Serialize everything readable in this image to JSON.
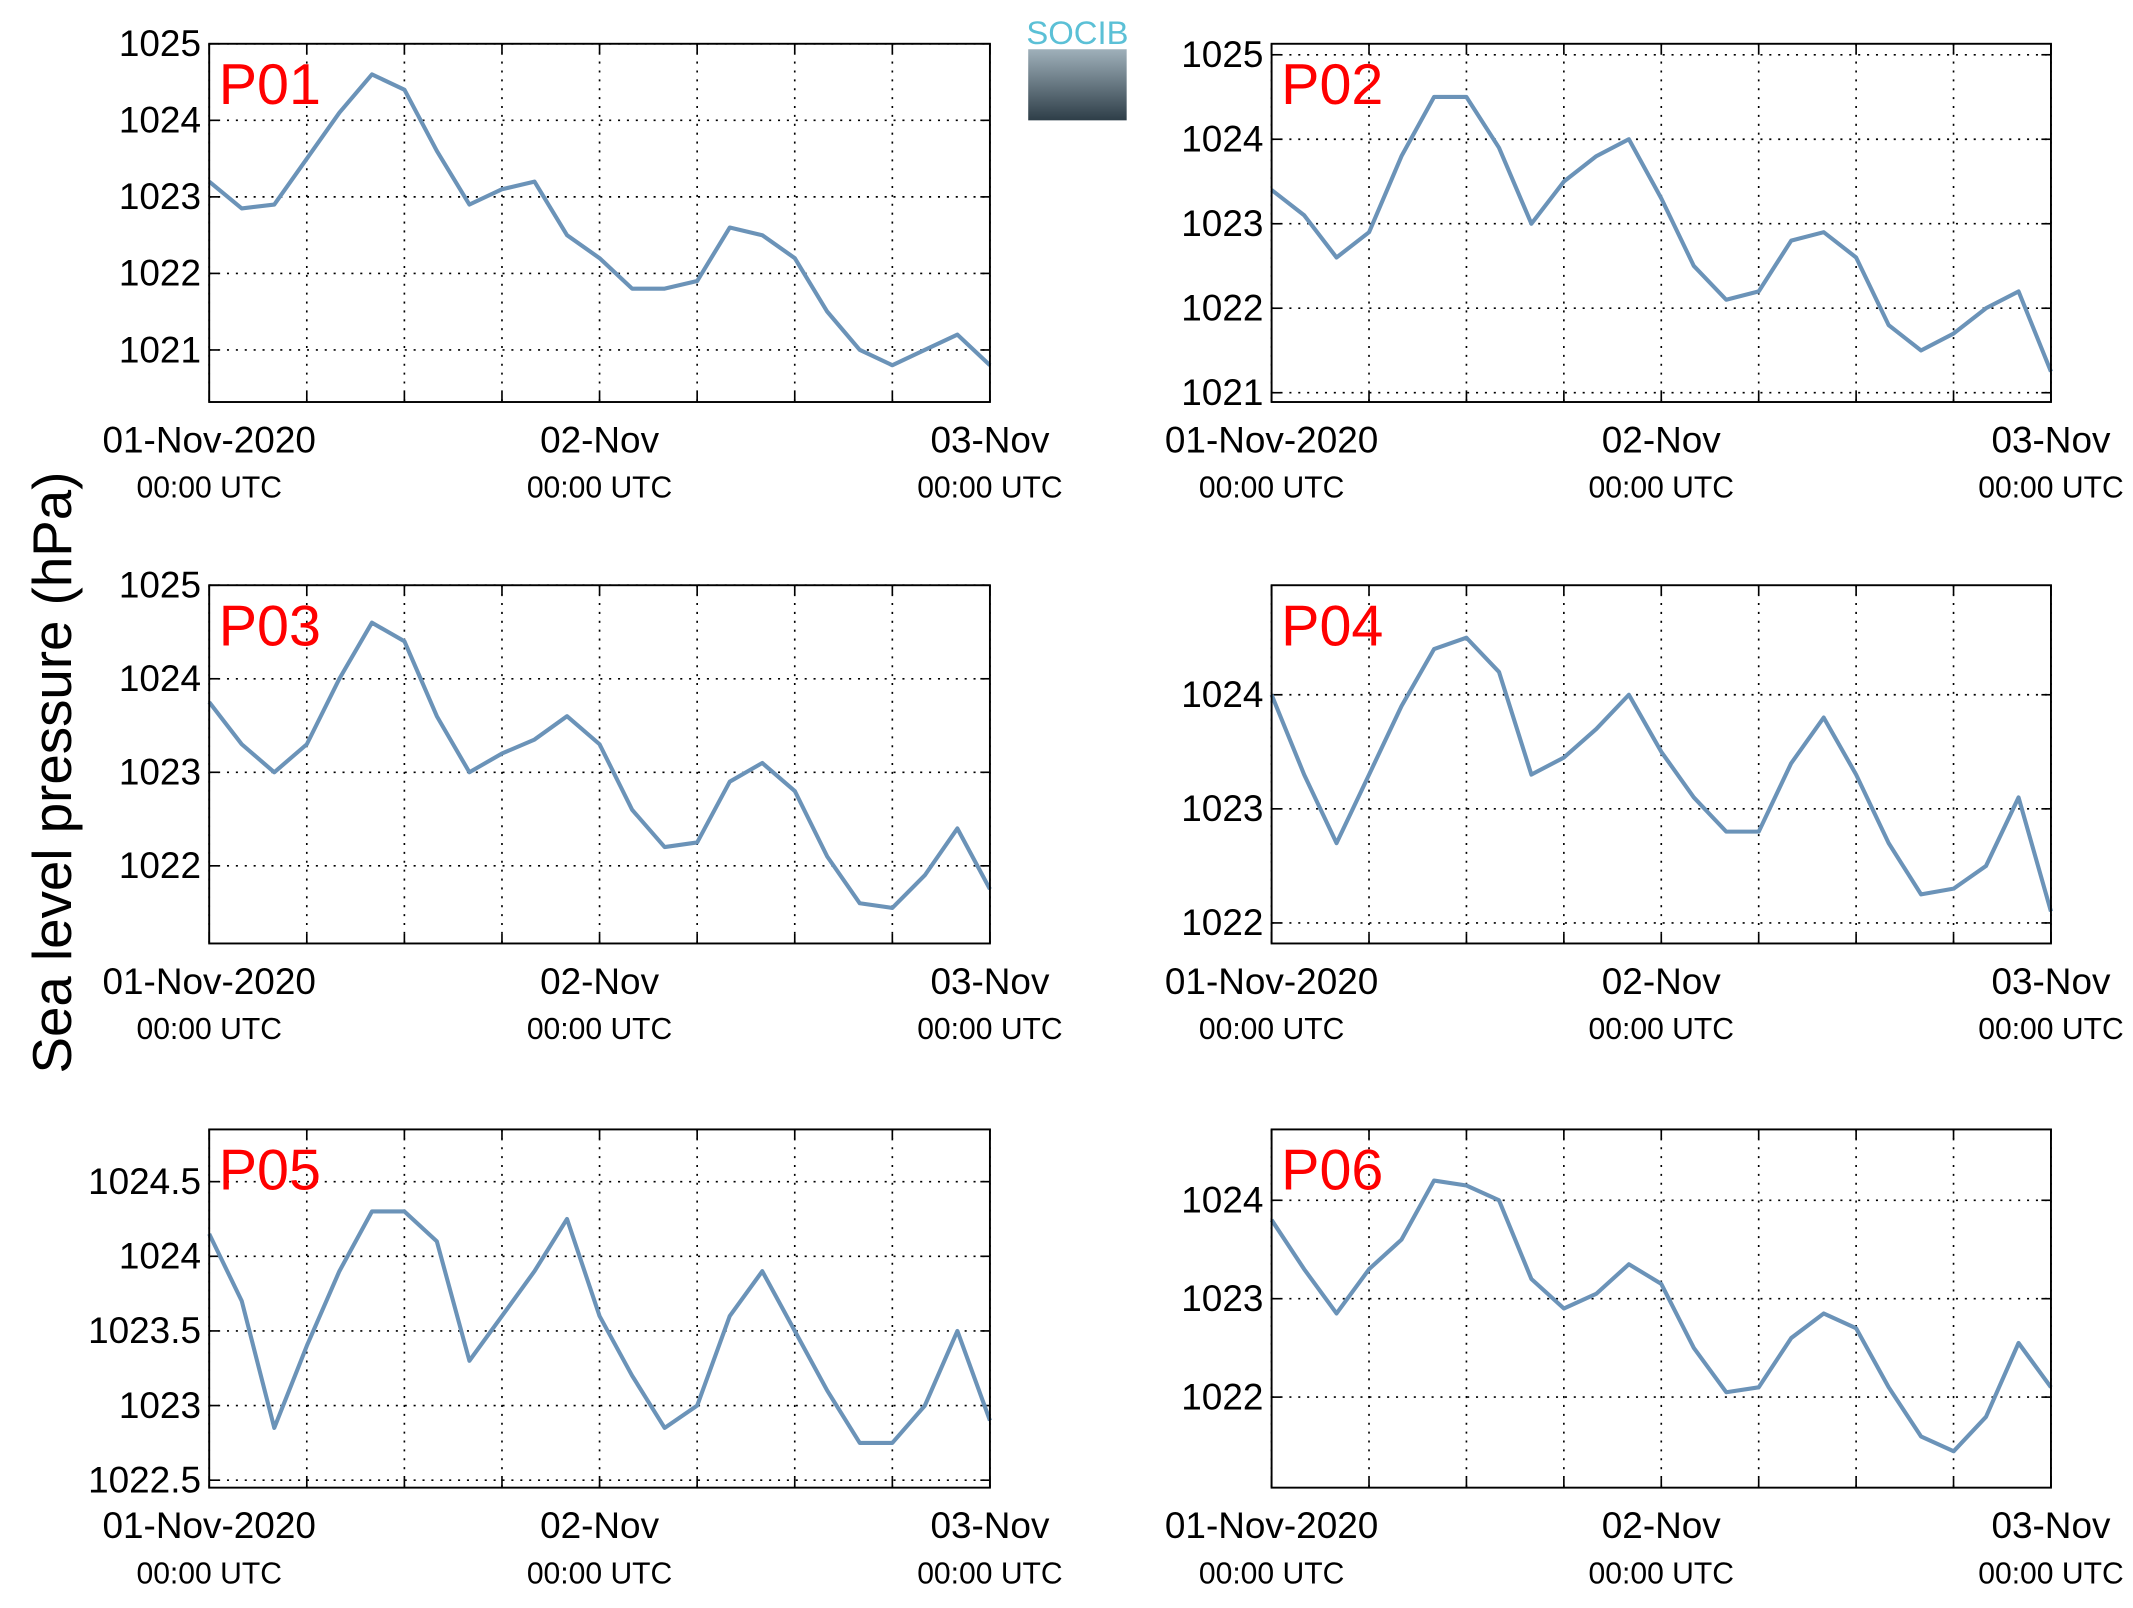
{
  "ylabel": "Sea level pressure (hPa)",
  "logo": "SOCIB",
  "chart_data": [
    {
      "type": "line",
      "title": "P01",
      "color": "#6b93b8",
      "grid": true,
      "x": [
        "2020-11-01T00:00",
        "2020-11-01T02:00",
        "2020-11-01T04:00",
        "2020-11-01T06:00",
        "2020-11-01T08:00",
        "2020-11-01T10:00",
        "2020-11-01T12:00",
        "2020-11-01T14:00",
        "2020-11-01T16:00",
        "2020-11-01T18:00",
        "2020-11-01T20:00",
        "2020-11-01T22:00",
        "2020-11-02T00:00",
        "2020-11-02T02:00",
        "2020-11-02T04:00",
        "2020-11-02T06:00",
        "2020-11-02T08:00",
        "2020-11-02T10:00",
        "2020-11-02T12:00",
        "2020-11-02T14:00",
        "2020-11-02T16:00",
        "2020-11-02T18:00",
        "2020-11-02T20:00",
        "2020-11-02T22:00",
        "2020-11-03T00:00"
      ],
      "values": [
        1023.2,
        1022.85,
        1022.9,
        1023.5,
        1024.1,
        1024.6,
        1024.4,
        1023.6,
        1022.9,
        1023.1,
        1023.2,
        1022.5,
        1022.2,
        1021.8,
        1021.8,
        1021.9,
        1022.6,
        1022.5,
        1022.2,
        1021.5,
        1021.0,
        1020.8,
        1021.0,
        1021.2,
        1020.8
      ],
      "xlim": [
        "2020-11-01T00:00",
        "2020-11-03T00:00"
      ],
      "xticks": [
        {
          "value": "2020-11-01T00:00",
          "label": "01-Nov-2020",
          "sublabel": "00:00 UTC"
        },
        {
          "value": "2020-11-01T06:00",
          "label": null
        },
        {
          "value": "2020-11-01T12:00",
          "label": null
        },
        {
          "value": "2020-11-01T18:00",
          "label": null
        },
        {
          "value": "2020-11-02T00:00",
          "label": "02-Nov",
          "sublabel": "00:00 UTC"
        },
        {
          "value": "2020-11-02T06:00",
          "label": null
        },
        {
          "value": "2020-11-02T12:00",
          "label": null
        },
        {
          "value": "2020-11-02T18:00",
          "label": null
        },
        {
          "value": "2020-11-03T00:00",
          "label": "03-Nov",
          "sublabel": "00:00 UTC"
        }
      ],
      "ylim": [
        1020.32,
        1025
      ],
      "yticks": [
        1021,
        1022,
        1023,
        1024,
        1025
      ]
    },
    {
      "type": "line",
      "title": "P02",
      "color": "#6b93b8",
      "grid": true,
      "x": [
        "2020-11-01T00:00",
        "2020-11-01T02:00",
        "2020-11-01T04:00",
        "2020-11-01T06:00",
        "2020-11-01T08:00",
        "2020-11-01T10:00",
        "2020-11-01T12:00",
        "2020-11-01T14:00",
        "2020-11-01T16:00",
        "2020-11-01T18:00",
        "2020-11-01T20:00",
        "2020-11-01T22:00",
        "2020-11-02T00:00",
        "2020-11-02T02:00",
        "2020-11-02T04:00",
        "2020-11-02T06:00",
        "2020-11-02T08:00",
        "2020-11-02T10:00",
        "2020-11-02T12:00",
        "2020-11-02T14:00",
        "2020-11-02T16:00",
        "2020-11-02T18:00",
        "2020-11-02T20:00",
        "2020-11-02T22:00",
        "2020-11-03T00:00"
      ],
      "values": [
        1023.4,
        1023.1,
        1022.6,
        1022.9,
        1023.8,
        1024.5,
        1024.5,
        1023.9,
        1023.0,
        1023.5,
        1023.8,
        1024.0,
        1023.3,
        1022.5,
        1022.1,
        1022.2,
        1022.8,
        1022.9,
        1022.6,
        1021.8,
        1021.5,
        1021.7,
        1022.0,
        1022.2,
        1021.25
      ],
      "xlim": [
        "2020-11-01T00:00",
        "2020-11-03T00:00"
      ],
      "xticks": [
        {
          "value": "2020-11-01T00:00",
          "label": "01-Nov-2020",
          "sublabel": "00:00 UTC"
        },
        {
          "value": "2020-11-01T06:00",
          "label": null
        },
        {
          "value": "2020-11-01T12:00",
          "label": null
        },
        {
          "value": "2020-11-01T18:00",
          "label": null
        },
        {
          "value": "2020-11-02T00:00",
          "label": "02-Nov",
          "sublabel": "00:00 UTC"
        },
        {
          "value": "2020-11-02T06:00",
          "label": null
        },
        {
          "value": "2020-11-02T12:00",
          "label": null
        },
        {
          "value": "2020-11-02T18:00",
          "label": null
        },
        {
          "value": "2020-11-03T00:00",
          "label": "03-Nov",
          "sublabel": "00:00 UTC"
        }
      ],
      "ylim": [
        1020.89,
        1025.13
      ],
      "yticks": [
        1021,
        1022,
        1023,
        1024,
        1025
      ]
    },
    {
      "type": "line",
      "title": "P03",
      "color": "#6b93b8",
      "grid": true,
      "x": [
        "2020-11-01T00:00",
        "2020-11-01T02:00",
        "2020-11-01T04:00",
        "2020-11-01T06:00",
        "2020-11-01T08:00",
        "2020-11-01T10:00",
        "2020-11-01T12:00",
        "2020-11-01T14:00",
        "2020-11-01T16:00",
        "2020-11-01T18:00",
        "2020-11-01T20:00",
        "2020-11-01T22:00",
        "2020-11-02T00:00",
        "2020-11-02T02:00",
        "2020-11-02T04:00",
        "2020-11-02T06:00",
        "2020-11-02T08:00",
        "2020-11-02T10:00",
        "2020-11-02T12:00",
        "2020-11-02T14:00",
        "2020-11-02T16:00",
        "2020-11-02T18:00",
        "2020-11-02T20:00",
        "2020-11-02T22:00",
        "2020-11-03T00:00"
      ],
      "values": [
        1023.75,
        1023.3,
        1023.0,
        1023.3,
        1024.0,
        1024.6,
        1024.4,
        1023.6,
        1023.0,
        1023.2,
        1023.35,
        1023.6,
        1023.3,
        1022.6,
        1022.2,
        1022.25,
        1022.9,
        1023.1,
        1022.8,
        1022.1,
        1021.6,
        1021.55,
        1021.9,
        1022.4,
        1021.75
      ],
      "xlim": [
        "2020-11-01T00:00",
        "2020-11-03T00:00"
      ],
      "xticks": [
        {
          "value": "2020-11-01T00:00",
          "label": "01-Nov-2020",
          "sublabel": "00:00 UTC"
        },
        {
          "value": "2020-11-01T06:00",
          "label": null
        },
        {
          "value": "2020-11-01T12:00",
          "label": null
        },
        {
          "value": "2020-11-01T18:00",
          "label": null
        },
        {
          "value": "2020-11-02T00:00",
          "label": "02-Nov",
          "sublabel": "00:00 UTC"
        },
        {
          "value": "2020-11-02T06:00",
          "label": null
        },
        {
          "value": "2020-11-02T12:00",
          "label": null
        },
        {
          "value": "2020-11-02T18:00",
          "label": null
        },
        {
          "value": "2020-11-03T00:00",
          "label": "03-Nov",
          "sublabel": "00:00 UTC"
        }
      ],
      "ylim": [
        1021.17,
        1025
      ],
      "yticks": [
        1022,
        1023,
        1024,
        1025
      ]
    },
    {
      "type": "line",
      "title": "P04",
      "color": "#6b93b8",
      "grid": true,
      "x": [
        "2020-11-01T00:00",
        "2020-11-01T02:00",
        "2020-11-01T04:00",
        "2020-11-01T06:00",
        "2020-11-01T08:00",
        "2020-11-01T10:00",
        "2020-11-01T12:00",
        "2020-11-01T14:00",
        "2020-11-01T16:00",
        "2020-11-01T18:00",
        "2020-11-01T20:00",
        "2020-11-01T22:00",
        "2020-11-02T00:00",
        "2020-11-02T02:00",
        "2020-11-02T04:00",
        "2020-11-02T06:00",
        "2020-11-02T08:00",
        "2020-11-02T10:00",
        "2020-11-02T12:00",
        "2020-11-02T14:00",
        "2020-11-02T16:00",
        "2020-11-02T18:00",
        "2020-11-02T20:00",
        "2020-11-02T22:00",
        "2020-11-03T00:00"
      ],
      "values": [
        1024.0,
        1023.3,
        1022.7,
        1023.3,
        1023.9,
        1024.4,
        1024.5,
        1024.2,
        1023.3,
        1023.45,
        1023.7,
        1024.0,
        1023.5,
        1023.1,
        1022.8,
        1022.8,
        1023.4,
        1023.8,
        1023.3,
        1022.7,
        1022.25,
        1022.3,
        1022.5,
        1023.1,
        1022.1
      ],
      "xlim": [
        "2020-11-01T00:00",
        "2020-11-03T00:00"
      ],
      "xticks": [
        {
          "value": "2020-11-01T00:00",
          "label": "01-Nov-2020",
          "sublabel": "00:00 UTC"
        },
        {
          "value": "2020-11-01T06:00",
          "label": null
        },
        {
          "value": "2020-11-01T12:00",
          "label": null
        },
        {
          "value": "2020-11-01T18:00",
          "label": null
        },
        {
          "value": "2020-11-02T00:00",
          "label": "02-Nov",
          "sublabel": "00:00 UTC"
        },
        {
          "value": "2020-11-02T06:00",
          "label": null
        },
        {
          "value": "2020-11-02T12:00",
          "label": null
        },
        {
          "value": "2020-11-02T18:00",
          "label": null
        },
        {
          "value": "2020-11-03T00:00",
          "label": "03-Nov",
          "sublabel": "00:00 UTC"
        }
      ],
      "ylim": [
        1021.82,
        1024.96
      ],
      "yticks": [
        1022,
        1023,
        1024
      ]
    },
    {
      "type": "line",
      "title": "P05",
      "color": "#6b93b8",
      "grid": true,
      "x": [
        "2020-11-01T00:00",
        "2020-11-01T02:00",
        "2020-11-01T04:00",
        "2020-11-01T06:00",
        "2020-11-01T08:00",
        "2020-11-01T10:00",
        "2020-11-01T12:00",
        "2020-11-01T14:00",
        "2020-11-01T16:00",
        "2020-11-01T18:00",
        "2020-11-01T20:00",
        "2020-11-01T22:00",
        "2020-11-02T00:00",
        "2020-11-02T02:00",
        "2020-11-02T04:00",
        "2020-11-02T06:00",
        "2020-11-02T08:00",
        "2020-11-02T10:00",
        "2020-11-02T12:00",
        "2020-11-02T14:00",
        "2020-11-02T16:00",
        "2020-11-02T18:00",
        "2020-11-02T20:00",
        "2020-11-02T22:00",
        "2020-11-03T00:00"
      ],
      "values": [
        1024.15,
        1023.7,
        1022.85,
        1023.4,
        1023.9,
        1024.3,
        1024.3,
        1024.1,
        1023.3,
        1023.6,
        1023.9,
        1024.25,
        1023.6,
        1023.2,
        1022.85,
        1023.0,
        1023.6,
        1023.9,
        1023.5,
        1023.1,
        1022.75,
        1022.75,
        1023.0,
        1023.5,
        1022.9
      ],
      "xlim": [
        "2020-11-01T00:00",
        "2020-11-03T00:00"
      ],
      "xticks": [
        {
          "value": "2020-11-01T00:00",
          "label": "01-Nov-2020",
          "sublabel": "00:00 UTC"
        },
        {
          "value": "2020-11-01T06:00",
          "label": null
        },
        {
          "value": "2020-11-01T12:00",
          "label": null
        },
        {
          "value": "2020-11-01T18:00",
          "label": null
        },
        {
          "value": "2020-11-02T00:00",
          "label": "02-Nov",
          "sublabel": "00:00 UTC"
        },
        {
          "value": "2020-11-02T06:00",
          "label": null
        },
        {
          "value": "2020-11-02T12:00",
          "label": null
        },
        {
          "value": "2020-11-02T18:00",
          "label": null
        },
        {
          "value": "2020-11-03T00:00",
          "label": "03-Nov",
          "sublabel": "00:00 UTC"
        }
      ],
      "ylim": [
        1022.45,
        1024.85
      ],
      "yticks": [
        1022.5,
        1023,
        1023.5,
        1024,
        1024.5
      ]
    },
    {
      "type": "line",
      "title": "P06",
      "color": "#6b93b8",
      "grid": true,
      "x": [
        "2020-11-01T00:00",
        "2020-11-01T02:00",
        "2020-11-01T04:00",
        "2020-11-01T06:00",
        "2020-11-01T08:00",
        "2020-11-01T10:00",
        "2020-11-01T12:00",
        "2020-11-01T14:00",
        "2020-11-01T16:00",
        "2020-11-01T18:00",
        "2020-11-01T20:00",
        "2020-11-01T22:00",
        "2020-11-02T00:00",
        "2020-11-02T02:00",
        "2020-11-02T04:00",
        "2020-11-02T06:00",
        "2020-11-02T08:00",
        "2020-11-02T10:00",
        "2020-11-02T12:00",
        "2020-11-02T14:00",
        "2020-11-02T16:00",
        "2020-11-02T18:00",
        "2020-11-02T20:00",
        "2020-11-02T22:00",
        "2020-11-03T00:00"
      ],
      "values": [
        1023.8,
        1023.3,
        1022.85,
        1023.3,
        1023.6,
        1024.2,
        1024.15,
        1024.0,
        1023.2,
        1022.9,
        1023.05,
        1023.35,
        1023.15,
        1022.5,
        1022.05,
        1022.1,
        1022.6,
        1022.85,
        1022.7,
        1022.1,
        1021.6,
        1021.45,
        1021.8,
        1022.55,
        1022.1
      ],
      "xlim": [
        "2020-11-01T00:00",
        "2020-11-03T00:00"
      ],
      "xticks": [
        {
          "value": "2020-11-01T00:00",
          "label": "01-Nov-2020",
          "sublabel": "00:00 UTC"
        },
        {
          "value": "2020-11-01T06:00",
          "label": null
        },
        {
          "value": "2020-11-01T12:00",
          "label": null
        },
        {
          "value": "2020-11-01T18:00",
          "label": null
        },
        {
          "value": "2020-11-02T00:00",
          "label": "02-Nov",
          "sublabel": "00:00 UTC"
        },
        {
          "value": "2020-11-02T06:00",
          "label": null
        },
        {
          "value": "2020-11-02T12:00",
          "label": null
        },
        {
          "value": "2020-11-02T18:00",
          "label": null
        },
        {
          "value": "2020-11-03T00:00",
          "label": "03-Nov",
          "sublabel": "00:00 UTC"
        }
      ],
      "ylim": [
        1021.08,
        1024.72
      ],
      "yticks": [
        1022,
        1023,
        1024
      ]
    }
  ]
}
